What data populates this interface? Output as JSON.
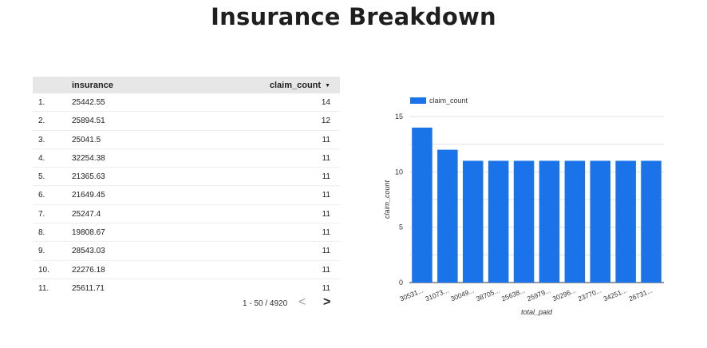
{
  "page": {
    "title": "Insurance Breakdown"
  },
  "table": {
    "columns": [
      "insurance",
      "claim_count"
    ],
    "sort_icon": "sort-descending-icon",
    "rows": [
      {
        "idx": "1.",
        "insurance": "25442.55",
        "claim_count": "14"
      },
      {
        "idx": "2.",
        "insurance": "25894.51",
        "claim_count": "12"
      },
      {
        "idx": "3.",
        "insurance": "25041.5",
        "claim_count": "11"
      },
      {
        "idx": "4.",
        "insurance": "32254.38",
        "claim_count": "11"
      },
      {
        "idx": "5.",
        "insurance": "21365.63",
        "claim_count": "11"
      },
      {
        "idx": "6.",
        "insurance": "21649.45",
        "claim_count": "11"
      },
      {
        "idx": "7.",
        "insurance": "25247.4",
        "claim_count": "11"
      },
      {
        "idx": "8.",
        "insurance": "19808.67",
        "claim_count": "11"
      },
      {
        "idx": "9.",
        "insurance": "28543.03",
        "claim_count": "11"
      },
      {
        "idx": "10.",
        "insurance": "22276.18",
        "claim_count": "11"
      },
      {
        "idx": "11.",
        "insurance": "25611.71",
        "claim_count": "11"
      }
    ],
    "pagination": {
      "label": "1 - 50 / 4920",
      "prev": "<",
      "next": ">"
    }
  },
  "chart_data": {
    "type": "bar",
    "categories": [
      "30531...",
      "31073...",
      "30049...",
      "38705...",
      "25638...",
      "25979...",
      "30296...",
      "23770...",
      "34251...",
      "26731..."
    ],
    "series": [
      {
        "name": "claim_count",
        "values": [
          14,
          12,
          11,
          11,
          11,
          11,
          11,
          11,
          11,
          11
        ]
      }
    ],
    "xlabel": "total_paid",
    "ylabel": "claim_count",
    "ylim": [
      0,
      15
    ],
    "yticks": [
      0,
      5,
      10,
      15
    ],
    "grid": true,
    "legend": "top-left",
    "color": "#1a73e8"
  }
}
